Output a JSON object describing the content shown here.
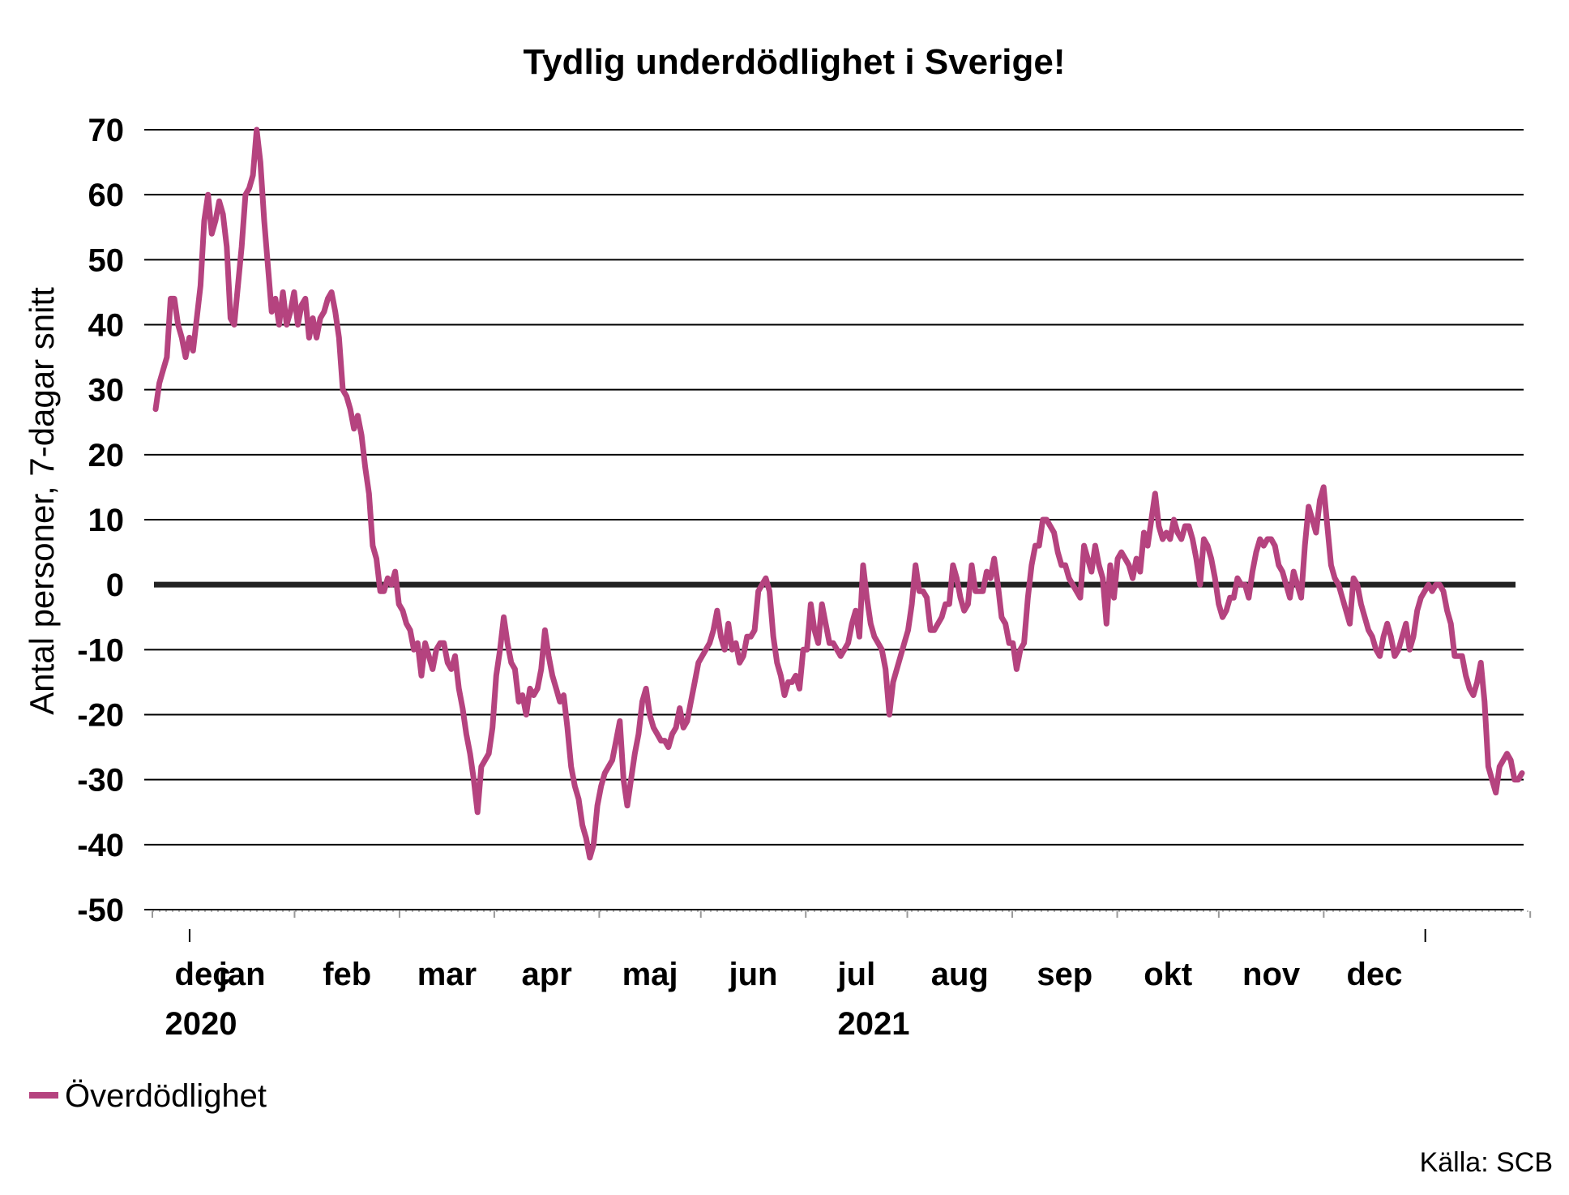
{
  "chart_data": {
    "type": "line",
    "title": "Tydlig underdödlighet i Sverige!",
    "ylabel": "Antal personer, 7-dagar snitt",
    "xlabel": "",
    "ylim": [
      -50,
      70
    ],
    "yticks": [
      70,
      60,
      50,
      40,
      30,
      20,
      10,
      0,
      -10,
      -20,
      -30,
      -40,
      -50
    ],
    "grid": true,
    "legend_position": "bottom-left",
    "months": [
      "dec",
      "jan",
      "feb",
      "mar",
      "apr",
      "maj",
      "jun",
      "jul",
      "aug",
      "sep",
      "okt",
      "nov",
      "dec"
    ],
    "years": [
      "2020",
      "2021"
    ],
    "line_color": "#b5437f",
    "series": [
      {
        "name": "Överdödlighet",
        "color": "#b5437f",
        "x_range": [
          "2020-11-20",
          "2021-12-31"
        ],
        "values": [
          27,
          31,
          33,
          35,
          44,
          44,
          40,
          38,
          35,
          38,
          36,
          41,
          46,
          56,
          60,
          54,
          56,
          59,
          57,
          52,
          41,
          40,
          46,
          52,
          60,
          61,
          63,
          70,
          65,
          56,
          49,
          42,
          44,
          40,
          45,
          40,
          42,
          45,
          40,
          43,
          44,
          38,
          41,
          38,
          41,
          42,
          44,
          45,
          42,
          38,
          30,
          29,
          27,
          24,
          26,
          23,
          18,
          14,
          6,
          4,
          -1,
          -1,
          1,
          0,
          2,
          -3,
          -4,
          -6,
          -7,
          -10,
          -9,
          -14,
          -9,
          -11,
          -13,
          -10,
          -9,
          -9,
          -12,
          -13,
          -11,
          -16,
          -19,
          -23,
          -26,
          -30,
          -35,
          -28,
          -27,
          -26,
          -22,
          -14,
          -10,
          -5,
          -9,
          -12,
          -13,
          -18,
          -17,
          -20,
          -16,
          -17,
          -16,
          -13,
          -7,
          -11,
          -14,
          -16,
          -18,
          -17,
          -22,
          -28,
          -31,
          -33,
          -37,
          -39,
          -42,
          -40,
          -34,
          -31,
          -29,
          -28,
          -27,
          -24,
          -21,
          -30,
          -34,
          -30,
          -26,
          -23,
          -18,
          -16,
          -20,
          -22,
          -23,
          -24,
          -24,
          -25,
          -23,
          -22,
          -19,
          -22,
          -21,
          -18,
          -15,
          -12,
          -11,
          -10,
          -9,
          -7,
          -4,
          -8,
          -10,
          -6,
          -10,
          -9,
          -12,
          -11,
          -8,
          -8,
          -7,
          -1,
          0,
          1,
          -1,
          -8,
          -12,
          -14,
          -17,
          -15,
          -15,
          -14,
          -16,
          -10,
          -10,
          -3,
          -7,
          -9,
          -3,
          -6,
          -9,
          -9,
          -10,
          -11,
          -10,
          -9,
          -6,
          -4,
          -8,
          3,
          -2,
          -6,
          -8,
          -9,
          -10,
          -13,
          -20,
          -15,
          -13,
          -11,
          -9,
          -7,
          -3,
          3,
          -1,
          -1,
          -2,
          -7,
          -7,
          -6,
          -5,
          -3,
          -3,
          3,
          1,
          -2,
          -4,
          -3,
          3,
          -1,
          -1,
          -1,
          2,
          1,
          4,
          0,
          -5,
          -6,
          -9,
          -9,
          -13,
          -10,
          -9,
          -2,
          3,
          6,
          6,
          10,
          10,
          9,
          8,
          5,
          3,
          3,
          1,
          0,
          -1,
          -2,
          6,
          4,
          2,
          6,
          3,
          1,
          -6,
          3,
          -2,
          4,
          5,
          4,
          3,
          1,
          4,
          2,
          8,
          6,
          10,
          14,
          9,
          7,
          8,
          7,
          10,
          8,
          7,
          9,
          9,
          7,
          4,
          0,
          7,
          6,
          4,
          1,
          -3,
          -5,
          -4,
          -2,
          -2,
          1,
          0,
          0,
          -2,
          2,
          5,
          7,
          6,
          7,
          7,
          6,
          3,
          2,
          0,
          -2,
          2,
          0,
          -2,
          6,
          12,
          10,
          8,
          13,
          15,
          9,
          3,
          1,
          0,
          -2,
          -4,
          -6,
          1,
          0,
          -3,
          -5,
          -7,
          -8,
          -10,
          -11,
          -8,
          -6,
          -8,
          -11,
          -10,
          -8,
          -6,
          -10,
          -8,
          -4,
          -2,
          -1,
          0,
          -1,
          0,
          0,
          -1,
          -4,
          -6,
          -11,
          -11,
          -11,
          -14,
          -16,
          -17,
          -15,
          -12,
          -18,
          -28,
          -30,
          -32,
          -28,
          -27,
          -26,
          -27,
          -30,
          -30,
          -29
        ]
      }
    ],
    "annotations": [
      "Källa: SCB"
    ]
  },
  "legend": {
    "items": [
      "Överdödlighet"
    ]
  },
  "source": "Källa: SCB"
}
